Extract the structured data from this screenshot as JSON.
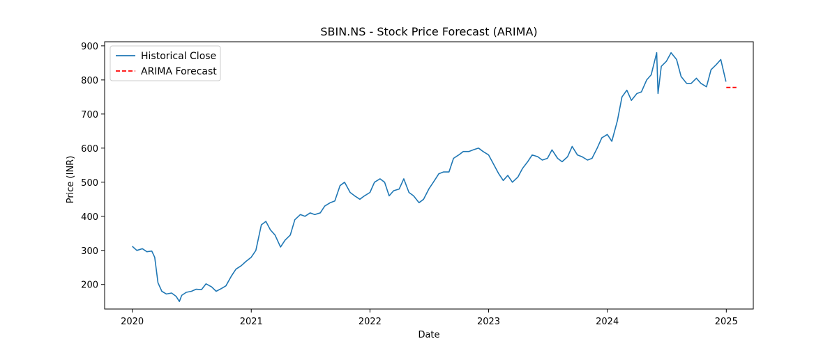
{
  "chart_data": {
    "type": "line",
    "title": "SBIN.NS - Stock Price Forecast (ARIMA)",
    "xlabel": "Date",
    "ylabel": "Price (INR)",
    "x_ticks": [
      "2020",
      "2021",
      "2022",
      "2023",
      "2024",
      "2025"
    ],
    "y_ticks": [
      200,
      300,
      400,
      500,
      600,
      700,
      800,
      900
    ],
    "xlim": [
      "2019-10-08",
      "2025-03-25"
    ],
    "ylim": [
      128,
      912
    ],
    "grid": false,
    "legend_position": "top-left",
    "series": [
      {
        "name": "Historical Close",
        "color": "#1f77b4",
        "style": "solid",
        "points": [
          [
            "2020-01-01",
            312
          ],
          [
            "2020-01-15",
            300
          ],
          [
            "2020-02-01",
            305
          ],
          [
            "2020-02-15",
            296
          ],
          [
            "2020-03-01",
            298
          ],
          [
            "2020-03-10",
            280
          ],
          [
            "2020-03-20",
            205
          ],
          [
            "2020-04-01",
            180
          ],
          [
            "2020-04-15",
            172
          ],
          [
            "2020-05-01",
            175
          ],
          [
            "2020-05-15",
            165
          ],
          [
            "2020-05-25",
            150
          ],
          [
            "2020-06-01",
            168
          ],
          [
            "2020-06-15",
            177
          ],
          [
            "2020-07-01",
            180
          ],
          [
            "2020-07-15",
            186
          ],
          [
            "2020-08-01",
            185
          ],
          [
            "2020-08-15",
            202
          ],
          [
            "2020-09-01",
            193
          ],
          [
            "2020-09-15",
            180
          ],
          [
            "2020-10-01",
            188
          ],
          [
            "2020-10-15",
            196
          ],
          [
            "2020-11-01",
            225
          ],
          [
            "2020-11-15",
            245
          ],
          [
            "2020-12-01",
            255
          ],
          [
            "2020-12-15",
            267
          ],
          [
            "2021-01-01",
            280
          ],
          [
            "2021-01-15",
            300
          ],
          [
            "2021-02-01",
            375
          ],
          [
            "2021-02-15",
            385
          ],
          [
            "2021-03-01",
            360
          ],
          [
            "2021-03-15",
            345
          ],
          [
            "2021-04-01",
            310
          ],
          [
            "2021-04-15",
            330
          ],
          [
            "2021-05-01",
            345
          ],
          [
            "2021-05-15",
            390
          ],
          [
            "2021-06-01",
            405
          ],
          [
            "2021-06-15",
            400
          ],
          [
            "2021-07-01",
            410
          ],
          [
            "2021-07-15",
            405
          ],
          [
            "2021-08-01",
            410
          ],
          [
            "2021-08-15",
            430
          ],
          [
            "2021-09-01",
            440
          ],
          [
            "2021-09-15",
            445
          ],
          [
            "2021-10-01",
            490
          ],
          [
            "2021-10-15",
            500
          ],
          [
            "2021-11-01",
            470
          ],
          [
            "2021-11-15",
            460
          ],
          [
            "2021-12-01",
            450
          ],
          [
            "2021-12-15",
            460
          ],
          [
            "2022-01-01",
            470
          ],
          [
            "2022-01-15",
            500
          ],
          [
            "2022-02-01",
            510
          ],
          [
            "2022-02-15",
            500
          ],
          [
            "2022-03-01",
            460
          ],
          [
            "2022-03-15",
            475
          ],
          [
            "2022-04-01",
            480
          ],
          [
            "2022-04-15",
            510
          ],
          [
            "2022-05-01",
            470
          ],
          [
            "2022-05-15",
            460
          ],
          [
            "2022-06-01",
            440
          ],
          [
            "2022-06-15",
            450
          ],
          [
            "2022-07-01",
            480
          ],
          [
            "2022-07-15",
            500
          ],
          [
            "2022-08-01",
            525
          ],
          [
            "2022-08-15",
            530
          ],
          [
            "2022-09-01",
            530
          ],
          [
            "2022-09-15",
            570
          ],
          [
            "2022-10-01",
            580
          ],
          [
            "2022-10-15",
            590
          ],
          [
            "2022-11-01",
            590
          ],
          [
            "2022-11-15",
            595
          ],
          [
            "2022-12-01",
            600
          ],
          [
            "2022-12-15",
            590
          ],
          [
            "2023-01-01",
            580
          ],
          [
            "2023-01-15",
            555
          ],
          [
            "2023-02-01",
            525
          ],
          [
            "2023-02-15",
            505
          ],
          [
            "2023-03-01",
            520
          ],
          [
            "2023-03-15",
            500
          ],
          [
            "2023-04-01",
            515
          ],
          [
            "2023-04-15",
            540
          ],
          [
            "2023-05-01",
            560
          ],
          [
            "2023-05-15",
            580
          ],
          [
            "2023-06-01",
            575
          ],
          [
            "2023-06-15",
            565
          ],
          [
            "2023-07-01",
            570
          ],
          [
            "2023-07-15",
            595
          ],
          [
            "2023-08-01",
            570
          ],
          [
            "2023-08-15",
            560
          ],
          [
            "2023-09-01",
            575
          ],
          [
            "2023-09-15",
            605
          ],
          [
            "2023-10-01",
            580
          ],
          [
            "2023-10-15",
            575
          ],
          [
            "2023-11-01",
            565
          ],
          [
            "2023-11-15",
            570
          ],
          [
            "2023-12-01",
            600
          ],
          [
            "2023-12-15",
            630
          ],
          [
            "2024-01-01",
            640
          ],
          [
            "2024-01-15",
            620
          ],
          [
            "2024-02-01",
            680
          ],
          [
            "2024-02-15",
            750
          ],
          [
            "2024-03-01",
            770
          ],
          [
            "2024-03-15",
            740
          ],
          [
            "2024-04-01",
            760
          ],
          [
            "2024-04-15",
            765
          ],
          [
            "2024-05-01",
            800
          ],
          [
            "2024-05-15",
            815
          ],
          [
            "2024-06-01",
            880
          ],
          [
            "2024-06-05",
            760
          ],
          [
            "2024-06-15",
            840
          ],
          [
            "2024-07-01",
            855
          ],
          [
            "2024-07-15",
            880
          ],
          [
            "2024-08-01",
            860
          ],
          [
            "2024-08-15",
            810
          ],
          [
            "2024-09-01",
            790
          ],
          [
            "2024-09-15",
            790
          ],
          [
            "2024-10-01",
            805
          ],
          [
            "2024-10-15",
            790
          ],
          [
            "2024-11-01",
            780
          ],
          [
            "2024-11-15",
            830
          ],
          [
            "2024-12-01",
            845
          ],
          [
            "2024-12-15",
            860
          ],
          [
            "2024-12-31",
            795
          ]
        ]
      },
      {
        "name": "ARIMA Forecast",
        "color": "#ff0000",
        "style": "dashed",
        "points": [
          [
            "2025-01-01",
            778
          ],
          [
            "2025-02-01",
            778
          ]
        ]
      }
    ]
  }
}
